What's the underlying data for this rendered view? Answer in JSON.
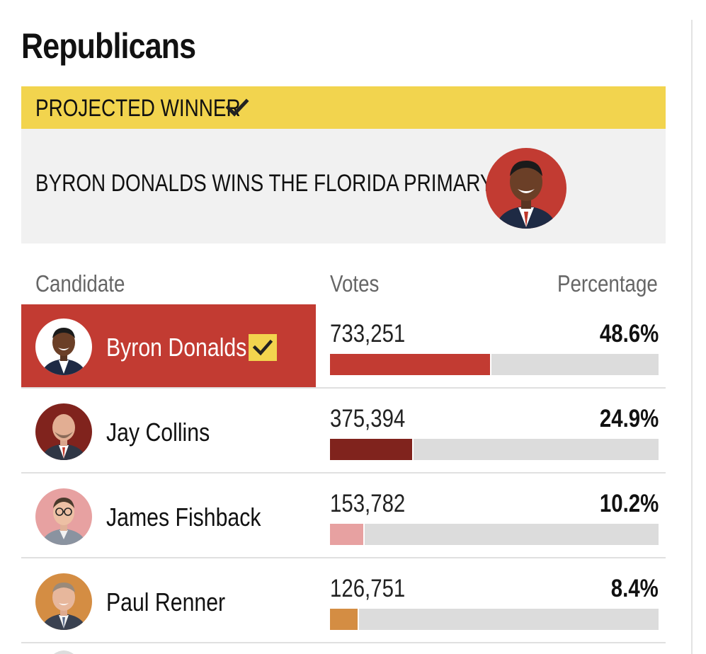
{
  "title": "Republicans",
  "banner": {
    "label": "PROJECTED WINNER",
    "icon": "check-icon",
    "color": "#f2d44e"
  },
  "winner_announcement": {
    "text": "BYRON DONALDS WINS THE FLORIDA PRIMARY",
    "avatar_bg": "#c23b32"
  },
  "table": {
    "headers": {
      "candidate": "Candidate",
      "votes": "Votes",
      "percentage": "Percentage"
    },
    "rows": [
      {
        "name": "Byron Donalds",
        "votes": "733,251",
        "percentage": "48.6%",
        "share": 0.486,
        "color": "#c23b32",
        "avatar_bg": "#ffffff",
        "winner": true
      },
      {
        "name": "Jay Collins",
        "votes": "375,394",
        "percentage": "24.9%",
        "share": 0.249,
        "color": "#80231d",
        "avatar_bg": "#80231d",
        "winner": false
      },
      {
        "name": "James Fishback",
        "votes": "153,782",
        "percentage": "10.2%",
        "share": 0.102,
        "color": "#e7a1a1",
        "avatar_bg": "#e7a1a1",
        "winner": false
      },
      {
        "name": "Paul Renner",
        "votes": "126,751",
        "percentage": "8.4%",
        "share": 0.084,
        "color": "#d48d43",
        "avatar_bg": "#d48d43",
        "winner": false
      }
    ]
  }
}
